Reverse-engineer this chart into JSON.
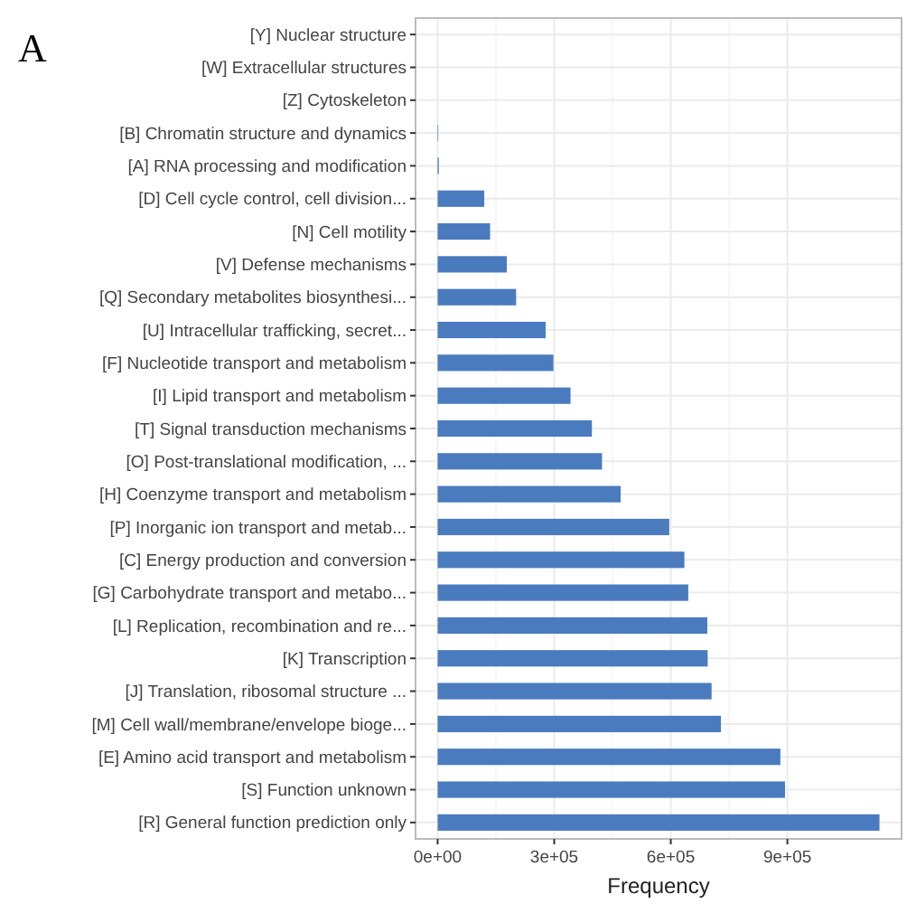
{
  "chart_data": {
    "type": "bar",
    "title": "A",
    "orientation": "horizontal",
    "xlabel": "Frequency",
    "categories": [
      "[Y] Nuclear structure",
      "[W] Extracellular structures",
      "[Z] Cytoskeleton",
      "[B] Chromatin structure and dynamics",
      "[A] RNA processing and modification",
      "[D] Cell cycle control, cell division...",
      "[N] Cell motility",
      "[V] Defense mechanisms",
      "[Q] Secondary metabolites biosynthesi...",
      "[U] Intracellular trafficking, secret...",
      "[F] Nucleotide transport and metabolism",
      "[I] Lipid transport and metabolism",
      "[T] Signal transduction mechanisms",
      "[O] Post-translational modification, ...",
      "[H] Coenzyme transport and metabolism",
      "[P] Inorganic ion transport and metab...",
      "[C] Energy production and conversion",
      "[G] Carbohydrate transport and metabo...",
      "[L] Replication, recombination and re...",
      "[K] Transcription",
      "[J] Translation, ribosomal structure ...",
      "[M] Cell wall/membrane/envelope bioge...",
      "[E] Amino acid transport and metabolism",
      "[S] Function unknown",
      "[R] General function prediction only"
    ],
    "values": [
      0,
      0,
      0,
      1500,
      3000,
      120000,
      135000,
      178000,
      202000,
      278000,
      298000,
      342000,
      397000,
      423000,
      471000,
      596000,
      635000,
      645000,
      694000,
      695000,
      705000,
      729000,
      882000,
      894000,
      1137000
    ],
    "color": "#4a7bbf",
    "xlim": [
      -56850,
      1193850
    ],
    "xticks": [
      {
        "value": 0,
        "label": "0e+00"
      },
      {
        "value": 300000,
        "label": "3e+05"
      },
      {
        "value": 600000,
        "label": "6e+05"
      },
      {
        "value": 900000,
        "label": "9e+05"
      }
    ],
    "grid": true
  }
}
